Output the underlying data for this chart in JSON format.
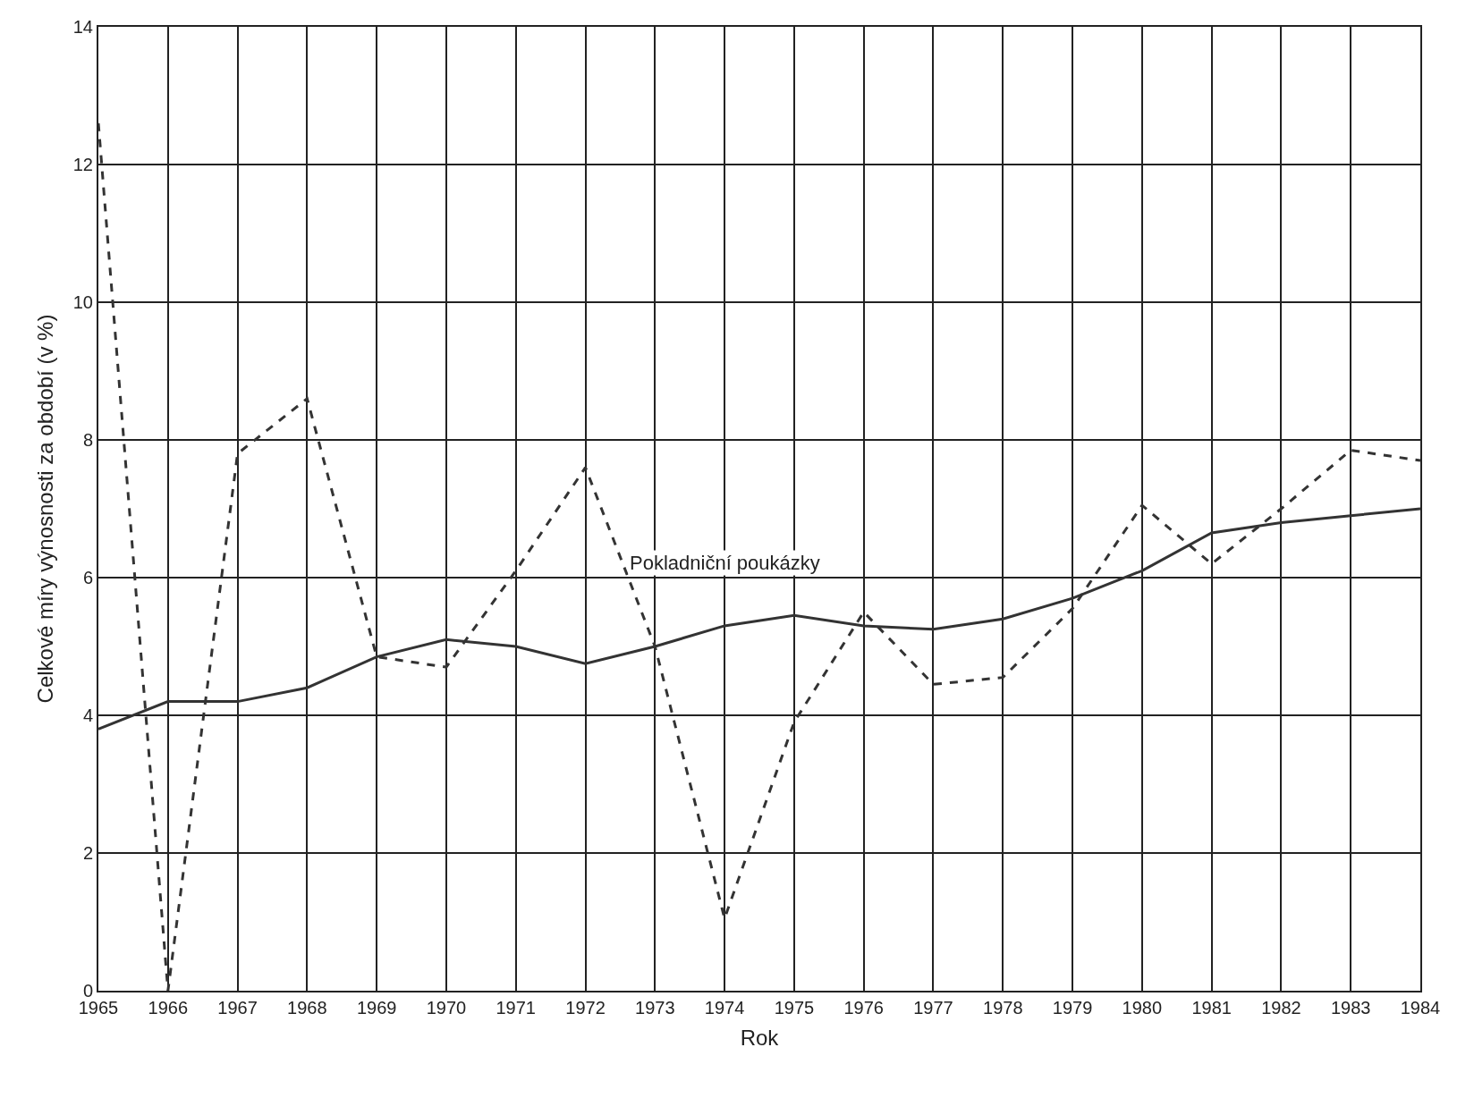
{
  "chart_data": {
    "type": "line",
    "xlabel": "Rok",
    "ylabel": "Celkové míry výnosnosti za období (v %)",
    "x": [
      1965,
      1966,
      1967,
      1968,
      1969,
      1970,
      1971,
      1972,
      1973,
      1974,
      1975,
      1976,
      1977,
      1978,
      1979,
      1980,
      1981,
      1982,
      1983,
      1984
    ],
    "series": [
      {
        "color": "#333333",
        "line_style": "dashed",
        "values": [
          12.6,
          0,
          7.8,
          8.6,
          4.85,
          4.7,
          6.1,
          7.6,
          5.0,
          1.05,
          3.9,
          5.5,
          4.45,
          4.55,
          5.55,
          7.05,
          6.2,
          7.0,
          7.85,
          7.7
        ]
      },
      {
        "name": "Pokladniční poukázky",
        "color": "#333333",
        "line_style": "solid",
        "values": [
          3.8,
          4.2,
          4.2,
          4.4,
          4.85,
          5.1,
          5.0,
          4.75,
          5.0,
          5.3,
          5.45,
          5.3,
          5.25,
          5.4,
          5.7,
          6.1,
          6.65,
          6.8,
          6.9,
          7.0
        ]
      }
    ],
    "xlim": [
      1965,
      1984
    ],
    "xticks": [
      1965,
      1966,
      1967,
      1968,
      1969,
      1970,
      1971,
      1972,
      1973,
      1974,
      1975,
      1976,
      1977,
      1978,
      1979,
      1980,
      1981,
      1982,
      1983,
      1984
    ],
    "ylim": [
      0,
      14
    ],
    "yticks": [
      0,
      2,
      4,
      6,
      8,
      10,
      12,
      14
    ],
    "grid": true,
    "legend": false,
    "marker": "none"
  }
}
